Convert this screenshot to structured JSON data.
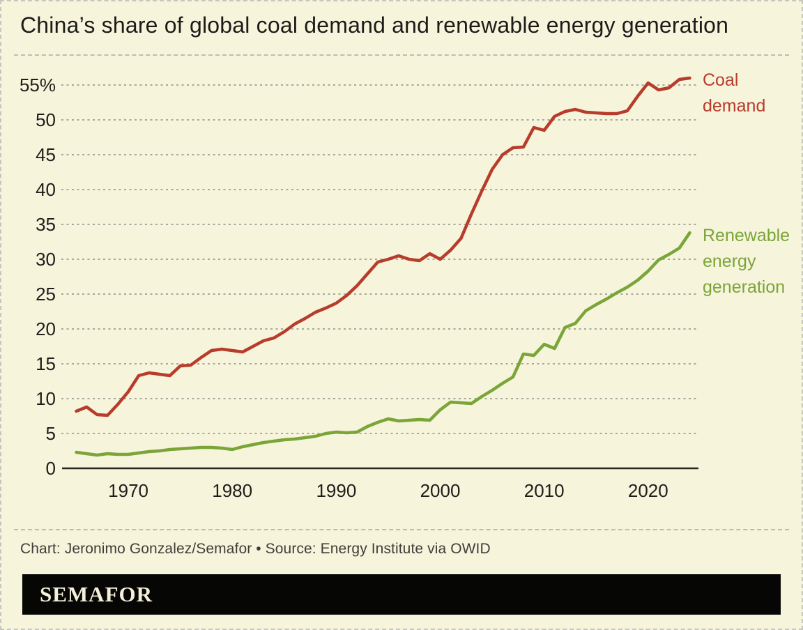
{
  "header": {
    "title": "China’s share of global coal demand and renewable energy generation"
  },
  "chart_data": {
    "type": "line",
    "unit": "%",
    "grid": "horizontal-dashed",
    "legend_position": "line-end-right-labels",
    "xlim": [
      1965,
      2024
    ],
    "ylim": [
      0,
      57.5
    ],
    "x_years": [
      1965,
      1966,
      1967,
      1968,
      1969,
      1970,
      1971,
      1972,
      1973,
      1974,
      1975,
      1976,
      1977,
      1978,
      1979,
      1980,
      1981,
      1982,
      1983,
      1984,
      1985,
      1986,
      1987,
      1988,
      1989,
      1990,
      1991,
      1992,
      1993,
      1994,
      1995,
      1996,
      1997,
      1998,
      1999,
      2000,
      2001,
      2002,
      2003,
      2004,
      2005,
      2006,
      2007,
      2008,
      2009,
      2010,
      2011,
      2012,
      2013,
      2014,
      2015,
      2016,
      2017,
      2018,
      2019,
      2020,
      2021,
      2022,
      2023,
      2024
    ],
    "series": [
      {
        "name": "Coal demand",
        "key": "coal-demand",
        "color": "#b73c2b",
        "label_lines": [
          "Coal",
          "demand"
        ],
        "values": [
          8.2,
          8.8,
          7.7,
          7.6,
          9.2,
          11.0,
          13.3,
          13.7,
          13.5,
          13.3,
          14.7,
          14.8,
          15.9,
          16.9,
          17.1,
          16.9,
          16.7,
          17.5,
          18.3,
          18.7,
          19.6,
          20.7,
          21.5,
          22.4,
          23.0,
          23.7,
          24.8,
          26.2,
          27.9,
          29.6,
          30.0,
          30.5,
          30.0,
          29.8,
          30.8,
          30.0,
          31.3,
          33.0,
          36.5,
          39.8,
          42.9,
          45.0,
          46.0,
          46.1,
          48.9,
          48.5,
          50.5,
          51.2,
          51.5,
          51.1,
          51.0,
          50.9,
          50.9,
          51.3,
          53.4,
          55.3,
          54.3,
          54.6,
          55.8,
          56.0
        ]
      },
      {
        "name": "Renewable energy generation",
        "key": "renewable-energy-generation",
        "color": "#7aa538",
        "label_lines": [
          "Renewable",
          "energy",
          "generation"
        ],
        "values": [
          2.3,
          2.1,
          1.9,
          2.1,
          2.0,
          2.0,
          2.2,
          2.4,
          2.5,
          2.7,
          2.8,
          2.9,
          3.0,
          3.0,
          2.9,
          2.7,
          3.1,
          3.4,
          3.7,
          3.9,
          4.1,
          4.2,
          4.4,
          4.6,
          5.0,
          5.2,
          5.1,
          5.2,
          6.0,
          6.6,
          7.1,
          6.8,
          6.9,
          7.0,
          6.9,
          8.4,
          9.5,
          9.4,
          9.3,
          10.3,
          11.2,
          12.2,
          13.1,
          16.4,
          16.2,
          17.8,
          17.2,
          20.2,
          20.8,
          22.6,
          23.5,
          24.3,
          25.2,
          26.0,
          27.0,
          28.3,
          29.9,
          30.7,
          31.6,
          33.8
        ]
      }
    ],
    "y_ticks": [
      {
        "value": 55,
        "label": "55%"
      },
      {
        "value": 50,
        "label": "50"
      },
      {
        "value": 45,
        "label": "45"
      },
      {
        "value": 40,
        "label": "40"
      },
      {
        "value": 35,
        "label": "35"
      },
      {
        "value": 30,
        "label": "30"
      },
      {
        "value": 25,
        "label": "25"
      },
      {
        "value": 20,
        "label": "20"
      },
      {
        "value": 15,
        "label": "15"
      },
      {
        "value": 10,
        "label": "10"
      },
      {
        "value": 5,
        "label": "5"
      },
      {
        "value": 0,
        "label": "0"
      }
    ],
    "x_ticks": [
      {
        "value": 1970,
        "label": "1970"
      },
      {
        "value": 1980,
        "label": "1980"
      },
      {
        "value": 1990,
        "label": "1990"
      },
      {
        "value": 2000,
        "label": "2000"
      },
      {
        "value": 2010,
        "label": "2010"
      },
      {
        "value": 2020,
        "label": "2020"
      }
    ]
  },
  "footer": {
    "credit": "Chart: Jeronimo Gonzalez/Semafor • Source: Energy Institute via OWID"
  },
  "logo": {
    "wordmark": "SEMAFOR"
  },
  "colors": {
    "background": "#f7f4dc",
    "coal": "#b73c2b",
    "renewable": "#7aa538",
    "gridline": "#9c9c92",
    "axis": "#26261f",
    "tick_text": "#1e1e1b",
    "title": "#1b1b18",
    "credit": "#3f3f3a",
    "divider": "#bdbdb2",
    "logo_bg": "#060604",
    "logo_text": "#f3efda"
  }
}
